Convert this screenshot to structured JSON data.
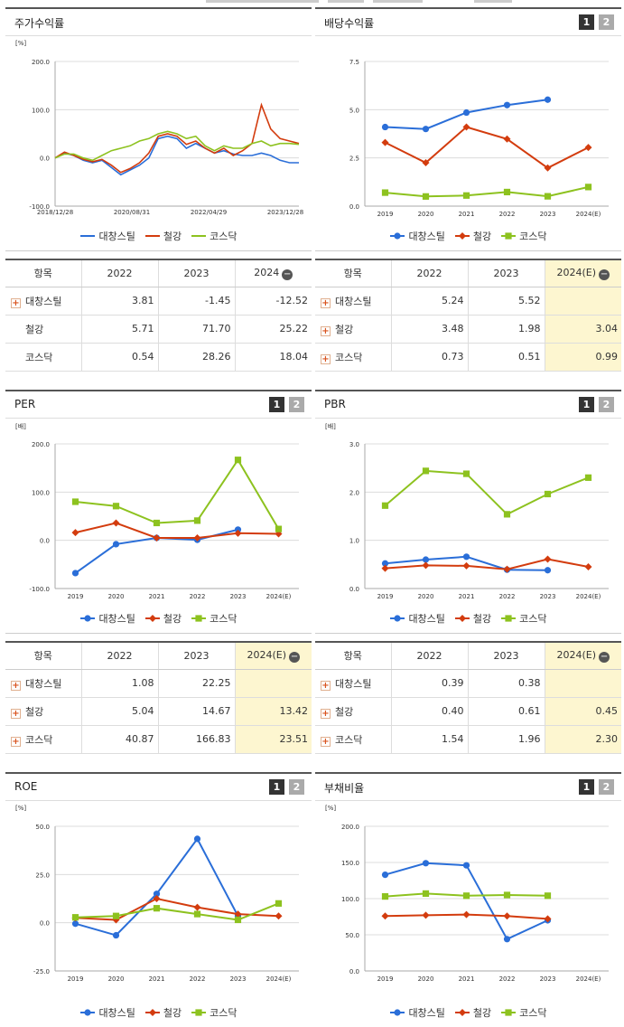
{
  "colors": {
    "series": [
      "#2a6ed8",
      "#d33c0e",
      "#8dc21f"
    ]
  },
  "legend": [
    "대창스틸",
    "철강",
    "코스닥"
  ],
  "panels": {
    "stock": {
      "title": "주가수익률",
      "unit": "[%]"
    },
    "dividend": {
      "title": "배당수익률",
      "btn1": "1",
      "btn2": "2",
      "unit": ""
    },
    "per": {
      "title": "PER",
      "btn1": "1",
      "btn2": "2",
      "unit": "[배]"
    },
    "pbr": {
      "title": "PBR",
      "btn1": "1",
      "btn2": "2",
      "unit": "[배]"
    },
    "roe": {
      "title": "ROE",
      "btn1": "1",
      "btn2": "2",
      "unit": "[%]"
    },
    "debt": {
      "title": "부채비율",
      "btn1": "1",
      "btn2": "2",
      "unit": "[%]"
    }
  },
  "chart_data": [
    {
      "id": "stock",
      "type": "line",
      "title": "주가수익률",
      "ylabel": "[%]",
      "ylim": [
        -100,
        200
      ],
      "yticks": [
        "200.0",
        "100.0",
        "0.0",
        "-100.0"
      ],
      "xticks": [
        "2018/12/28",
        "2020/08/31",
        "2022/04/29",
        "2023/12/28"
      ],
      "series": [
        {
          "name": "대창스틸",
          "values": [
            0,
            10,
            5,
            -5,
            -10,
            -5,
            -20,
            -35,
            -25,
            -15,
            0,
            40,
            45,
            40,
            20,
            30,
            20,
            10,
            15,
            8,
            5,
            5,
            10,
            5,
            -5,
            -10,
            -10
          ]
        },
        {
          "name": "철강",
          "values": [
            0,
            12,
            5,
            -3,
            -8,
            -3,
            -15,
            -30,
            -22,
            -10,
            10,
            45,
            50,
            45,
            28,
            35,
            20,
            10,
            20,
            5,
            15,
            30,
            110,
            60,
            40,
            35,
            30
          ]
        },
        {
          "name": "코스닥",
          "values": [
            0,
            8,
            8,
            0,
            -5,
            5,
            15,
            20,
            25,
            35,
            40,
            50,
            55,
            50,
            40,
            45,
            25,
            15,
            25,
            20,
            20,
            30,
            35,
            25,
            30,
            30,
            28
          ]
        }
      ]
    },
    {
      "id": "dividend",
      "type": "line",
      "title": "배당수익률",
      "ylim": [
        0,
        7.5
      ],
      "yticks": [
        "7.5",
        "5.0",
        "2.5",
        "0.0"
      ],
      "categories": [
        "2019",
        "2020",
        "2021",
        "2022",
        "2023",
        "2024(E)"
      ],
      "series": [
        {
          "name": "대창스틸",
          "values": [
            4.1,
            4.0,
            4.85,
            5.24,
            5.52,
            null
          ]
        },
        {
          "name": "철강",
          "values": [
            3.3,
            2.25,
            4.1,
            3.48,
            1.98,
            3.04
          ]
        },
        {
          "name": "코스닥",
          "values": [
            0.7,
            0.5,
            0.55,
            0.73,
            0.51,
            0.99
          ]
        }
      ]
    },
    {
      "id": "per",
      "type": "line",
      "title": "PER",
      "ylabel": "[배]",
      "ylim": [
        -100,
        200
      ],
      "yticks": [
        "200.0",
        "100.0",
        "0.0",
        "-100.0"
      ],
      "categories": [
        "2019",
        "2020",
        "2021",
        "2022",
        "2023",
        "2024(E)"
      ],
      "series": [
        {
          "name": "대창스틸",
          "values": [
            -68,
            -8,
            5,
            1.08,
            22.25,
            null
          ]
        },
        {
          "name": "철강",
          "values": [
            16,
            36,
            5,
            5.04,
            14.67,
            13.42
          ]
        },
        {
          "name": "코스닥",
          "values": [
            80,
            71,
            36,
            40.87,
            166.83,
            23.51
          ]
        }
      ]
    },
    {
      "id": "pbr",
      "type": "line",
      "title": "PBR",
      "ylabel": "[배]",
      "ylim": [
        0,
        3
      ],
      "yticks": [
        "3.0",
        "2.0",
        "1.0",
        "0.0"
      ],
      "categories": [
        "2019",
        "2020",
        "2021",
        "2022",
        "2023",
        "2024(E)"
      ],
      "series": [
        {
          "name": "대창스틸",
          "values": [
            0.52,
            0.6,
            0.66,
            0.39,
            0.38,
            null
          ]
        },
        {
          "name": "철강",
          "values": [
            0.42,
            0.48,
            0.47,
            0.4,
            0.61,
            0.45
          ]
        },
        {
          "name": "코스닥",
          "values": [
            1.72,
            2.44,
            2.38,
            1.54,
            1.96,
            2.3
          ]
        }
      ]
    },
    {
      "id": "roe",
      "type": "line",
      "title": "ROE",
      "ylabel": "[%]",
      "ylim": [
        -25,
        50
      ],
      "yticks": [
        "50.0",
        "25.0",
        "0.0",
        "-25.0"
      ],
      "categories": [
        "2019",
        "2020",
        "2021",
        "2022",
        "2023",
        "2024(E)"
      ],
      "series": [
        {
          "name": "대창스틸",
          "values": [
            -0.5,
            -6.5,
            15,
            43.5,
            3.5,
            null
          ]
        },
        {
          "name": "철강",
          "values": [
            2.5,
            1.5,
            12.5,
            8,
            4.5,
            3.5
          ]
        },
        {
          "name": "코스닥",
          "values": [
            2.8,
            3.5,
            7.5,
            4.5,
            1.5,
            10
          ]
        }
      ]
    },
    {
      "id": "debt",
      "type": "line",
      "title": "부채비율",
      "ylabel": "[%]",
      "ylim": [
        0,
        200
      ],
      "yticks": [
        "200.0",
        "150.0",
        "100.0",
        "50.0",
        "0.0"
      ],
      "categories": [
        "2019",
        "2020",
        "2021",
        "2022",
        "2023",
        "2024(E)"
      ],
      "series": [
        {
          "name": "대창스틸",
          "values": [
            133,
            149,
            146,
            44,
            70,
            null
          ]
        },
        {
          "name": "철강",
          "values": [
            76,
            77,
            78,
            76,
            72,
            null
          ]
        },
        {
          "name": "코스닥",
          "values": [
            103,
            107,
            104,
            105,
            104,
            null
          ]
        }
      ]
    }
  ],
  "tables": {
    "stock": {
      "headers": [
        "항목",
        "2022",
        "2023",
        "2024"
      ],
      "hl": false,
      "rows": [
        {
          "name": "대창스틸",
          "plus": true,
          "v": [
            "3.81",
            "-1.45",
            "-12.52"
          ]
        },
        {
          "name": "철강",
          "plus": false,
          "v": [
            "5.71",
            "71.70",
            "25.22"
          ]
        },
        {
          "name": "코스닥",
          "plus": false,
          "v": [
            "0.54",
            "28.26",
            "18.04"
          ]
        }
      ]
    },
    "dividend": {
      "headers": [
        "항목",
        "2022",
        "2023",
        "2024(E)"
      ],
      "hl": true,
      "rows": [
        {
          "name": "대창스틸",
          "plus": true,
          "v": [
            "5.24",
            "5.52",
            ""
          ]
        },
        {
          "name": "철강",
          "plus": true,
          "v": [
            "3.48",
            "1.98",
            "3.04"
          ]
        },
        {
          "name": "코스닥",
          "plus": true,
          "v": [
            "0.73",
            "0.51",
            "0.99"
          ]
        }
      ]
    },
    "per": {
      "headers": [
        "항목",
        "2022",
        "2023",
        "2024(E)"
      ],
      "hl": true,
      "rows": [
        {
          "name": "대창스틸",
          "plus": true,
          "v": [
            "1.08",
            "22.25",
            ""
          ]
        },
        {
          "name": "철강",
          "plus": true,
          "v": [
            "5.04",
            "14.67",
            "13.42"
          ]
        },
        {
          "name": "코스닥",
          "plus": true,
          "v": [
            "40.87",
            "166.83",
            "23.51"
          ]
        }
      ]
    },
    "pbr": {
      "headers": [
        "항목",
        "2022",
        "2023",
        "2024(E)"
      ],
      "hl": true,
      "rows": [
        {
          "name": "대창스틸",
          "plus": true,
          "v": [
            "0.39",
            "0.38",
            ""
          ]
        },
        {
          "name": "철강",
          "plus": true,
          "v": [
            "0.40",
            "0.61",
            "0.45"
          ]
        },
        {
          "name": "코스닥",
          "plus": true,
          "v": [
            "1.54",
            "1.96",
            "2.30"
          ]
        }
      ]
    }
  }
}
